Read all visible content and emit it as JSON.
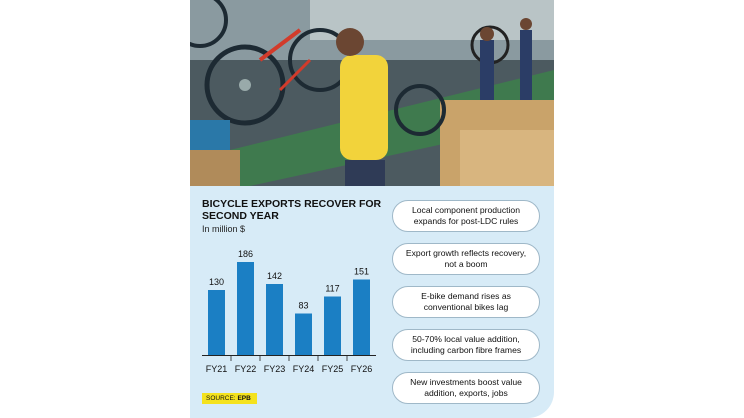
{
  "chart_data": {
    "type": "bar",
    "title": "BICYCLE EXPORTS RECOVER FOR SECOND YEAR",
    "unit_label": "In million $",
    "categories": [
      "FY21",
      "FY22",
      "FY23",
      "FY24",
      "FY25",
      "FY26"
    ],
    "values": [
      130,
      186,
      142,
      83,
      117,
      151
    ],
    "ylim": [
      0,
      200
    ],
    "grid": false,
    "bar_color": "#1b7fc4"
  },
  "source": {
    "label": "SOURCE:",
    "value": "EPB"
  },
  "highlights": [
    "Local component production expands for post-LDC rules",
    "Export growth reflects recovery, not a boom",
    "E-bike demand rises as conventional bikes lag",
    "50-70% local value addition, including carbon fibre frames",
    "New investments boost value addition, exports, jobs"
  ],
  "colors": {
    "panel_bg": "#d7ebf7",
    "source_bg": "#f4e21e"
  }
}
